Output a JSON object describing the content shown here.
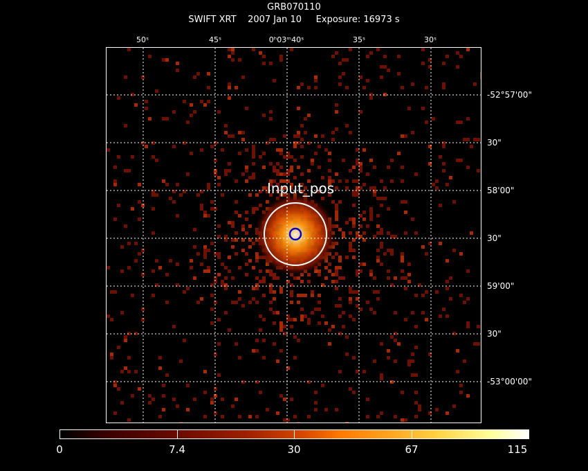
{
  "header": {
    "object": "GRB070110",
    "line2": "SWIFT XRT    2007 Jan 10     Exposure: 16973 s"
  },
  "top_ticks": [
    "50ˢ",
    "45ˢ",
    "0ʰ03ᵐ40ˢ",
    "35ˢ",
    "30ˢ"
  ],
  "right_ticks": [
    "-52°57'00\"",
    "30\"",
    "58'00\"",
    "30\"",
    "59'00\"",
    "30\"",
    "-53°00'00\""
  ],
  "source_label": "Input_pos",
  "colorbar": {
    "labels": [
      "0",
      "7.4",
      "30",
      "67",
      "115"
    ]
  },
  "colors": {
    "background": "#000000",
    "grid": "#ffffff",
    "region": "#ffffff",
    "marker": "#0000cc",
    "faint_pixel": "#7a1400"
  }
}
